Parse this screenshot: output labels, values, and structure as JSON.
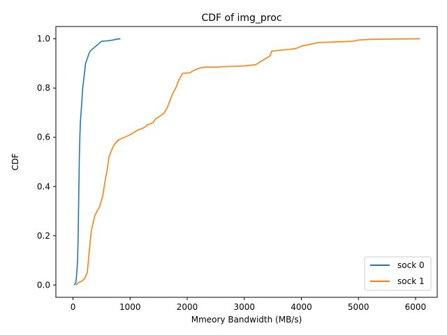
{
  "chart_data": {
    "type": "line",
    "title": "CDF of img_proc",
    "xlabel": "Mmeory Bandwidth (MB/s)",
    "ylabel": "CDF",
    "xlim": [
      -300,
      6380
    ],
    "ylim": [
      -0.05,
      1.05
    ],
    "xticks": [
      0,
      1000,
      2000,
      3000,
      4000,
      5000,
      6000
    ],
    "yticks": [
      0.0,
      0.2,
      0.4,
      0.6,
      0.8,
      1.0
    ],
    "xtick_labels": [
      "0",
      "1000",
      "2000",
      "3000",
      "4000",
      "5000",
      "6000"
    ],
    "ytick_labels": [
      "0.0",
      "0.2",
      "0.4",
      "0.6",
      "0.8",
      "1.0"
    ],
    "grid": false,
    "legend": {
      "position": "lower-right"
    },
    "series": [
      {
        "name": "sock 0",
        "color": "#1f77b4",
        "points": [
          [
            20,
            0.0
          ],
          [
            50,
            0.01
          ],
          [
            60,
            0.03
          ],
          [
            70,
            0.06
          ],
          [
            80,
            0.1
          ],
          [
            90,
            0.2
          ],
          [
            100,
            0.35
          ],
          [
            110,
            0.5
          ],
          [
            120,
            0.6
          ],
          [
            130,
            0.66
          ],
          [
            150,
            0.73
          ],
          [
            170,
            0.8
          ],
          [
            200,
            0.86
          ],
          [
            220,
            0.9
          ],
          [
            250,
            0.92
          ],
          [
            280,
            0.94
          ],
          [
            300,
            0.95
          ],
          [
            350,
            0.96
          ],
          [
            400,
            0.97
          ],
          [
            450,
            0.98
          ],
          [
            500,
            0.99
          ],
          [
            600,
            0.992
          ],
          [
            700,
            0.995
          ],
          [
            750,
            0.998
          ],
          [
            830,
            1.0
          ]
        ]
      },
      {
        "name": "sock 1",
        "color": "#ff7f0e",
        "points": [
          [
            50,
            0.0
          ],
          [
            100,
            0.01
          ],
          [
            150,
            0.015
          ],
          [
            200,
            0.025
          ],
          [
            250,
            0.05
          ],
          [
            270,
            0.1
          ],
          [
            290,
            0.15
          ],
          [
            320,
            0.22
          ],
          [
            350,
            0.25
          ],
          [
            380,
            0.28
          ],
          [
            420,
            0.3
          ],
          [
            470,
            0.32
          ],
          [
            520,
            0.36
          ],
          [
            560,
            0.42
          ],
          [
            600,
            0.47
          ],
          [
            630,
            0.52
          ],
          [
            680,
            0.55
          ],
          [
            720,
            0.57
          ],
          [
            800,
            0.59
          ],
          [
            900,
            0.6
          ],
          [
            1000,
            0.61
          ],
          [
            1100,
            0.625
          ],
          [
            1250,
            0.64
          ],
          [
            1300,
            0.65
          ],
          [
            1400,
            0.66
          ],
          [
            1450,
            0.675
          ],
          [
            1550,
            0.69
          ],
          [
            1600,
            0.7
          ],
          [
            1650,
            0.72
          ],
          [
            1700,
            0.75
          ],
          [
            1750,
            0.78
          ],
          [
            1800,
            0.8
          ],
          [
            1850,
            0.83
          ],
          [
            1920,
            0.86
          ],
          [
            2050,
            0.862
          ],
          [
            2100,
            0.87
          ],
          [
            2200,
            0.88
          ],
          [
            2300,
            0.885
          ],
          [
            2500,
            0.885
          ],
          [
            2700,
            0.887
          ],
          [
            3000,
            0.89
          ],
          [
            3200,
            0.895
          ],
          [
            3300,
            0.91
          ],
          [
            3450,
            0.93
          ],
          [
            3480,
            0.95
          ],
          [
            3700,
            0.955
          ],
          [
            3900,
            0.96
          ],
          [
            4000,
            0.97
          ],
          [
            4200,
            0.98
          ],
          [
            4300,
            0.985
          ],
          [
            4900,
            0.99
          ],
          [
            5000,
            0.995
          ],
          [
            5200,
            0.998
          ],
          [
            6080,
            1.0
          ]
        ]
      }
    ]
  }
}
